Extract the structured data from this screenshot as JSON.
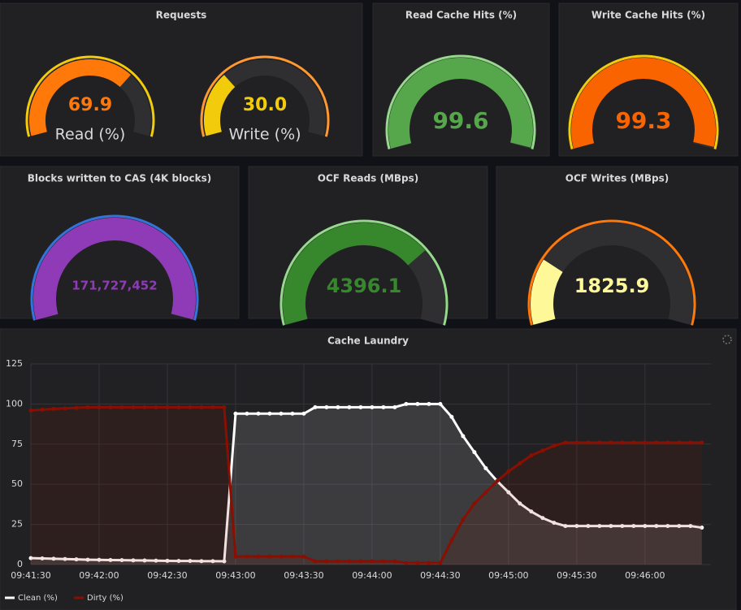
{
  "chart_data": [
    {
      "type": "gauge",
      "title": "Requests",
      "gauges": [
        {
          "label": "Read (%)",
          "value": 69.9,
          "min": 0,
          "max": 100,
          "color": "#ff780a",
          "threshold_color": "#f2cc0c"
        },
        {
          "label": "Write (%)",
          "value": 30.0,
          "value_label": "30.0",
          "min": 0,
          "max": 100,
          "color": "#f2cc0c",
          "threshold_color": "#ff9830"
        }
      ]
    },
    {
      "type": "gauge",
      "title": "Read Cache Hits (%)",
      "gauges": [
        {
          "value": 99.6,
          "min": 0,
          "max": 100,
          "color": "#56a64b",
          "threshold_color": "#96d98d"
        }
      ]
    },
    {
      "type": "gauge",
      "title": "Write Cache Hits (%)",
      "gauges": [
        {
          "value": 99.3,
          "min": 0,
          "max": 100,
          "color": "#fa6400",
          "threshold_color": "#f2cc0c"
        }
      ]
    },
    {
      "type": "gauge",
      "title": "Blocks written to CAS (4K blocks)",
      "gauges": [
        {
          "value": 171727452,
          "value_label": "171,727,452",
          "min": 0,
          "max": 172000000,
          "color": "#8f3bb8",
          "threshold_color": "#3274d9"
        }
      ]
    },
    {
      "type": "gauge",
      "title": "OCF Reads (MBps)",
      "gauges": [
        {
          "value": 4396.1,
          "min": 0,
          "max": 6000,
          "color": "#37872d",
          "threshold_color": "#96d98d"
        }
      ]
    },
    {
      "type": "gauge",
      "title": "OCF Writes (MBps)",
      "gauges": [
        {
          "value": 1825.9,
          "min": 0,
          "max": 8000,
          "color": "#fff899",
          "threshold_color": "#ff780a"
        }
      ]
    },
    {
      "type": "line",
      "title": "Cache Laundry",
      "x": [
        "09:41:30",
        "09:41:35",
        "09:41:40",
        "09:41:45",
        "09:41:50",
        "09:41:55",
        "09:42:00",
        "09:42:05",
        "09:42:10",
        "09:42:15",
        "09:42:20",
        "09:42:25",
        "09:42:30",
        "09:42:35",
        "09:42:40",
        "09:42:45",
        "09:42:50",
        "09:42:55",
        "09:43:00",
        "09:43:05",
        "09:43:10",
        "09:43:15",
        "09:43:20",
        "09:43:25",
        "09:43:30",
        "09:43:35",
        "09:43:40",
        "09:43:45",
        "09:43:50",
        "09:43:55",
        "09:44:00",
        "09:44:05",
        "09:44:10",
        "09:44:15",
        "09:44:20",
        "09:44:25",
        "09:44:30",
        "09:44:35",
        "09:44:40",
        "09:44:45",
        "09:44:50",
        "09:44:55",
        "09:45:00",
        "09:45:05",
        "09:45:10",
        "09:45:15",
        "09:45:20",
        "09:45:25",
        "09:45:30",
        "09:45:35",
        "09:45:40",
        "09:45:45",
        "09:45:50",
        "09:45:55",
        "09:46:00",
        "09:46:05",
        "09:46:10",
        "09:46:15",
        "09:46:20",
        "09:46:25"
      ],
      "series": [
        {
          "name": "Clean (%)",
          "color": "#ffffff",
          "values": [
            4,
            3.8,
            3.6,
            3.4,
            3.2,
            3,
            2.9,
            2.8,
            2.7,
            2.6,
            2.5,
            2.4,
            2.3,
            2.2,
            2.2,
            2.1,
            2.1,
            2,
            94,
            94,
            94,
            94,
            94,
            94,
            94,
            98,
            98,
            98,
            98,
            98,
            98,
            98,
            98,
            100,
            100,
            100,
            100,
            92,
            80,
            70,
            60,
            52,
            45,
            38,
            33,
            29,
            26,
            24,
            24,
            24,
            24,
            24,
            24,
            24,
            24,
            24,
            24,
            24,
            24,
            23
          ]
        },
        {
          "name": "Dirty (%)",
          "color": "#890f02",
          "values": [
            96,
            96.5,
            97,
            97.3,
            97.6,
            98,
            98,
            98,
            98,
            98,
            98,
            98,
            98,
            98,
            98,
            98,
            98,
            98,
            5,
            5,
            5,
            5,
            5,
            5,
            5,
            2,
            2,
            2,
            2,
            2,
            2,
            2,
            2,
            1,
            1,
            1,
            1,
            15,
            28,
            38,
            45,
            52,
            58,
            63,
            68,
            71,
            74,
            76,
            76,
            76,
            76,
            76,
            76,
            76,
            76,
            76,
            76,
            76,
            76,
            76
          ]
        }
      ],
      "xlim": [
        "09:41:30",
        "09:46:29"
      ],
      "xticks": [
        "09:41:30",
        "09:42:00",
        "09:42:30",
        "09:43:00",
        "09:43:30",
        "09:44:00",
        "09:44:30",
        "09:45:00",
        "09:45:30",
        "09:46:00"
      ],
      "ylim": [
        0,
        125
      ],
      "yticks": [
        0,
        25,
        50,
        75,
        100,
        125
      ],
      "grid": true,
      "legend": "bottom-left"
    }
  ]
}
